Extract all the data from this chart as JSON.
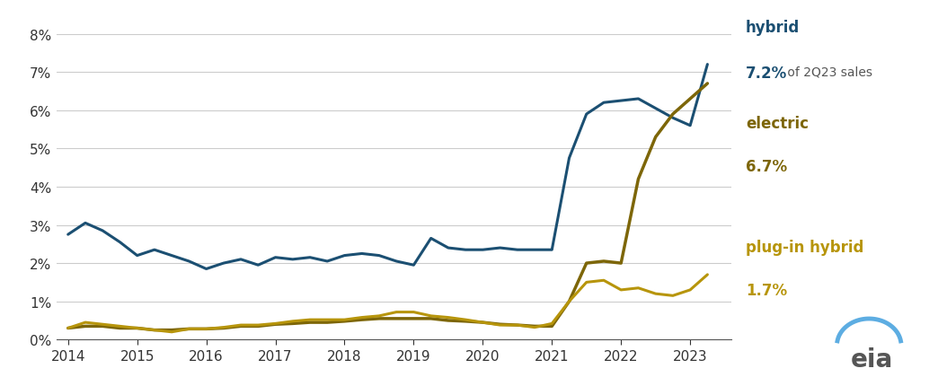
{
  "hybrid": {
    "x": [
      2014.0,
      2014.25,
      2014.5,
      2014.75,
      2015.0,
      2015.25,
      2015.5,
      2015.75,
      2016.0,
      2016.25,
      2016.5,
      2016.75,
      2017.0,
      2017.25,
      2017.5,
      2017.75,
      2018.0,
      2018.25,
      2018.5,
      2018.75,
      2019.0,
      2019.25,
      2019.5,
      2019.75,
      2020.0,
      2020.25,
      2020.5,
      2020.75,
      2021.0,
      2021.25,
      2021.5,
      2021.75,
      2022.0,
      2022.25,
      2022.5,
      2022.75,
      2023.0,
      2023.25
    ],
    "y": [
      2.75,
      3.05,
      2.85,
      2.55,
      2.2,
      2.35,
      2.2,
      2.05,
      1.85,
      2.0,
      2.1,
      1.95,
      2.15,
      2.1,
      2.15,
      2.05,
      2.2,
      2.25,
      2.2,
      2.05,
      1.95,
      2.65,
      2.4,
      2.35,
      2.35,
      2.4,
      2.35,
      2.35,
      2.35,
      4.75,
      5.9,
      6.2,
      6.25,
      6.3,
      6.05,
      5.8,
      5.6,
      7.2
    ],
    "color": "#1B4F72",
    "linewidth": 2.2
  },
  "electric": {
    "x": [
      2014.0,
      2014.25,
      2014.5,
      2014.75,
      2015.0,
      2015.25,
      2015.5,
      2015.75,
      2016.0,
      2016.25,
      2016.5,
      2016.75,
      2017.0,
      2017.25,
      2017.5,
      2017.75,
      2018.0,
      2018.25,
      2018.5,
      2018.75,
      2019.0,
      2019.25,
      2019.5,
      2019.75,
      2020.0,
      2020.25,
      2020.5,
      2020.75,
      2021.0,
      2021.25,
      2021.5,
      2021.75,
      2022.0,
      2022.25,
      2022.5,
      2022.75,
      2023.0,
      2023.25
    ],
    "y": [
      0.3,
      0.35,
      0.35,
      0.3,
      0.3,
      0.25,
      0.25,
      0.28,
      0.28,
      0.3,
      0.35,
      0.35,
      0.4,
      0.42,
      0.45,
      0.45,
      0.48,
      0.52,
      0.55,
      0.55,
      0.55,
      0.55,
      0.5,
      0.48,
      0.45,
      0.4,
      0.38,
      0.35,
      0.35,
      1.0,
      2.0,
      2.05,
      2.0,
      4.2,
      5.3,
      5.9,
      6.3,
      6.7
    ],
    "color": "#7D6608",
    "linewidth": 2.5
  },
  "plugin_hybrid": {
    "x": [
      2014.0,
      2014.25,
      2014.5,
      2014.75,
      2015.0,
      2015.25,
      2015.5,
      2015.75,
      2016.0,
      2016.25,
      2016.5,
      2016.75,
      2017.0,
      2017.25,
      2017.5,
      2017.75,
      2018.0,
      2018.25,
      2018.5,
      2018.75,
      2019.0,
      2019.25,
      2019.5,
      2019.75,
      2020.0,
      2020.25,
      2020.5,
      2020.75,
      2021.0,
      2021.25,
      2021.5,
      2021.75,
      2022.0,
      2022.25,
      2022.5,
      2022.75,
      2023.0,
      2023.25
    ],
    "y": [
      0.3,
      0.45,
      0.4,
      0.35,
      0.3,
      0.25,
      0.2,
      0.28,
      0.28,
      0.32,
      0.38,
      0.38,
      0.42,
      0.48,
      0.52,
      0.52,
      0.52,
      0.58,
      0.62,
      0.72,
      0.72,
      0.62,
      0.58,
      0.52,
      0.45,
      0.38,
      0.38,
      0.32,
      0.42,
      1.0,
      1.5,
      1.55,
      1.3,
      1.35,
      1.2,
      1.15,
      1.3,
      1.7
    ],
    "color": "#B7950B",
    "linewidth": 2.2
  },
  "ylim": [
    0,
    8.5
  ],
  "yticks": [
    0,
    1,
    2,
    3,
    4,
    5,
    6,
    7,
    8
  ],
  "xlim": [
    2013.83,
    2023.6
  ],
  "xticks": [
    2014,
    2015,
    2016,
    2017,
    2018,
    2019,
    2020,
    2021,
    2022,
    2023
  ],
  "bg_color": "#ffffff",
  "grid_color": "#cccccc"
}
